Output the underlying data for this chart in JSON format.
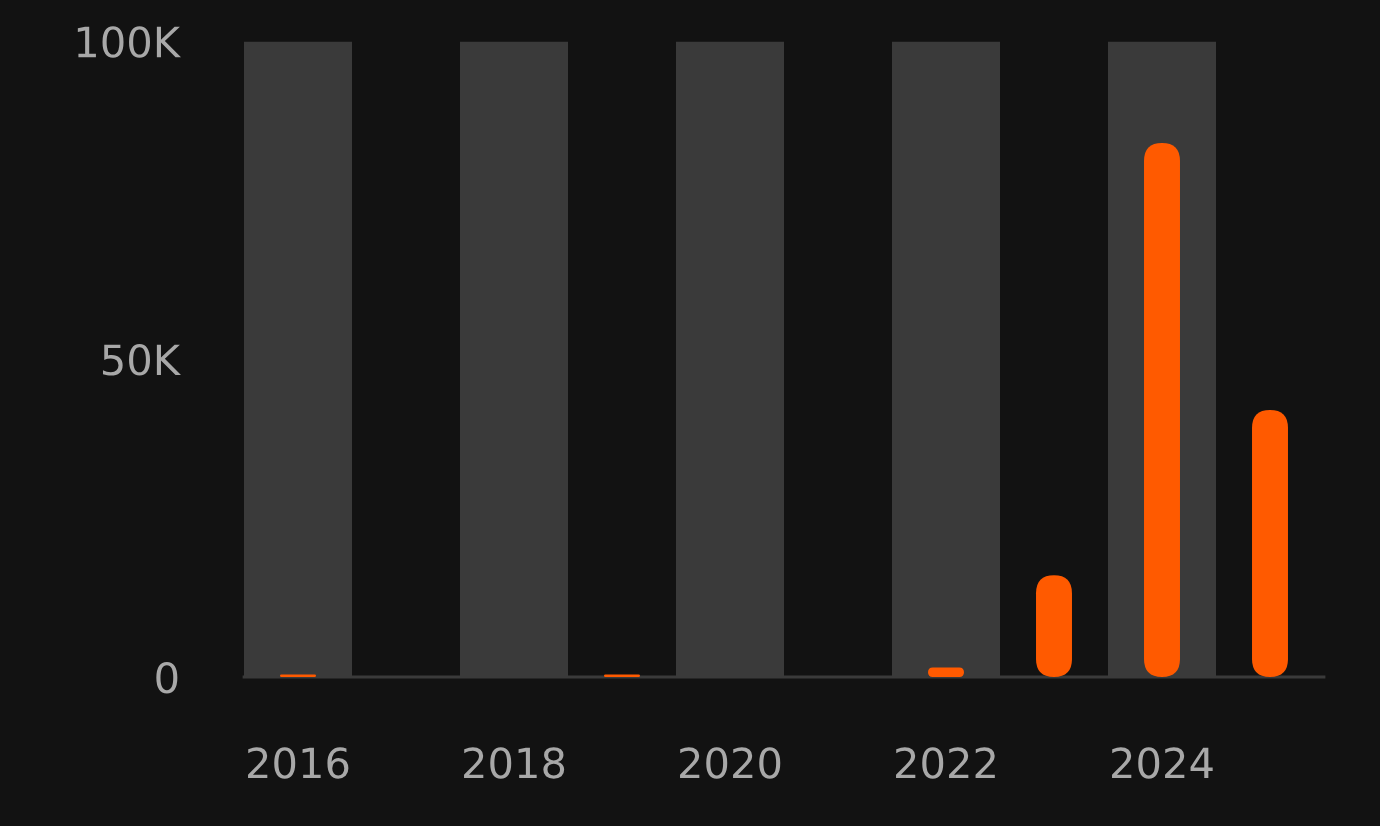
{
  "chart_data": {
    "type": "bar",
    "x": [
      2016,
      2017,
      2018,
      2019,
      2020,
      2021,
      2022,
      2023,
      2024,
      2025
    ],
    "values": [
      400,
      0,
      0,
      400,
      0,
      0,
      1500,
      16000,
      84000,
      42000
    ],
    "color": "#ff5a00",
    "xlim": [
      2015.5,
      2025.5
    ],
    "xticks": [
      2016,
      2018,
      2020,
      2022,
      2024
    ],
    "ylim": [
      0,
      100000
    ],
    "yticks": [
      {
        "value": 0,
        "label": "0"
      },
      {
        "value": 50000,
        "label": "50K"
      },
      {
        "value": 100000,
        "label": "100K"
      }
    ],
    "bands": [
      {
        "axis": "x",
        "from": 2015.5,
        "to": 2016.5,
        "color": "#3a3a3a"
      },
      {
        "axis": "x",
        "from": 2017.5,
        "to": 2018.5,
        "color": "#3a3a3a"
      },
      {
        "axis": "x",
        "from": 2019.5,
        "to": 2020.5,
        "color": "#3a3a3a"
      },
      {
        "axis": "x",
        "from": 2021.5,
        "to": 2022.5,
        "color": "#3a3a3a"
      },
      {
        "axis": "x",
        "from": 2023.5,
        "to": 2024.5,
        "color": "#3a3a3a"
      }
    ]
  }
}
